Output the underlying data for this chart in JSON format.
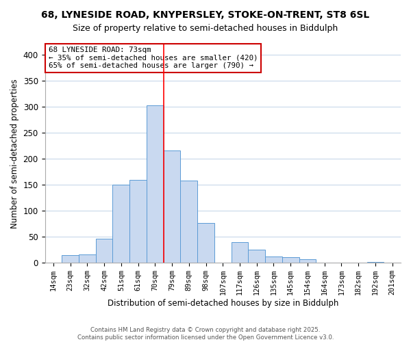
{
  "title_line1": "68, LYNESIDE ROAD, KNYPERSLEY, STOKE-ON-TRENT, ST8 6SL",
  "title_line2": "Size of property relative to semi-detached houses in Biddulph",
  "xlabel": "Distribution of semi-detached houses by size in Biddulph",
  "ylabel": "Number of semi-detached properties",
  "bar_labels": [
    "14sqm",
    "23sqm",
    "32sqm",
    "42sqm",
    "51sqm",
    "61sqm",
    "70sqm",
    "79sqm",
    "89sqm",
    "98sqm",
    "107sqm",
    "117sqm",
    "126sqm",
    "135sqm",
    "145sqm",
    "154sqm",
    "164sqm",
    "173sqm",
    "182sqm",
    "192sqm",
    "201sqm"
  ],
  "bar_heights": [
    0,
    15,
    16,
    46,
    150,
    160,
    303,
    216,
    158,
    76,
    0,
    40,
    25,
    12,
    11,
    7,
    0,
    0,
    0,
    2,
    0
  ],
  "bar_color": "#c9d9f0",
  "bar_edge_color": "#5b9bd5",
  "vline_x": 6.5,
  "vline_color": "red",
  "ylim": [
    0,
    420
  ],
  "yticks": [
    0,
    50,
    100,
    150,
    200,
    250,
    300,
    350,
    400
  ],
  "annotation_title": "68 LYNESIDE ROAD: 73sqm",
  "annotation_line1": "← 35% of semi-detached houses are smaller (420)",
  "annotation_line2": "65% of semi-detached houses are larger (790) →",
  "footer_line1": "Contains HM Land Registry data © Crown copyright and database right 2025.",
  "footer_line2": "Contains public sector information licensed under the Open Government Licence v3.0.",
  "background_color": "#ffffff",
  "grid_color": "#c8d8ea"
}
